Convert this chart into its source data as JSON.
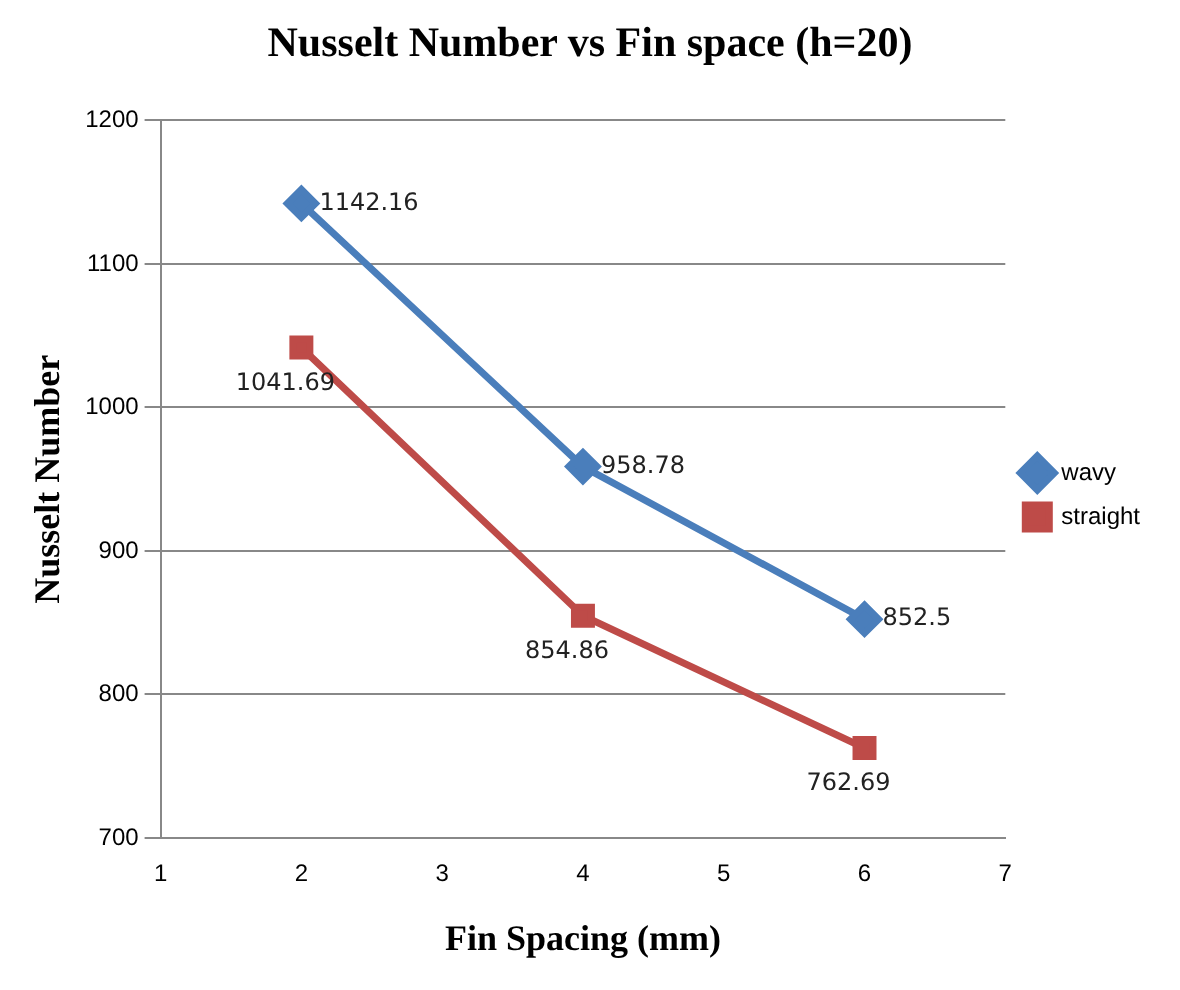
{
  "chart_data": {
    "type": "line",
    "title": "Nusselt Number vs Fin space (h=20)",
    "xlabel": "Fin Spacing (mm)",
    "ylabel": "Nusselt Number",
    "x": [
      2,
      4,
      6
    ],
    "series": [
      {
        "name": "wavy",
        "color": "#4a7ebb",
        "values": [
          1142.16,
          958.78,
          852.5
        ],
        "marker": "diamond"
      },
      {
        "name": "straight",
        "color": "#be4b48",
        "values": [
          1041.69,
          854.86,
          762.69
        ],
        "marker": "square"
      }
    ],
    "xlim": [
      1,
      7
    ],
    "xticks": [
      1,
      2,
      3,
      4,
      5,
      6,
      7
    ],
    "ylim": [
      700,
      1200
    ],
    "yticks": [
      700,
      800,
      900,
      1000,
      1100,
      1200
    ],
    "grid": "y",
    "legend": "right",
    "data_labels": true,
    "line_style": "solid"
  }
}
